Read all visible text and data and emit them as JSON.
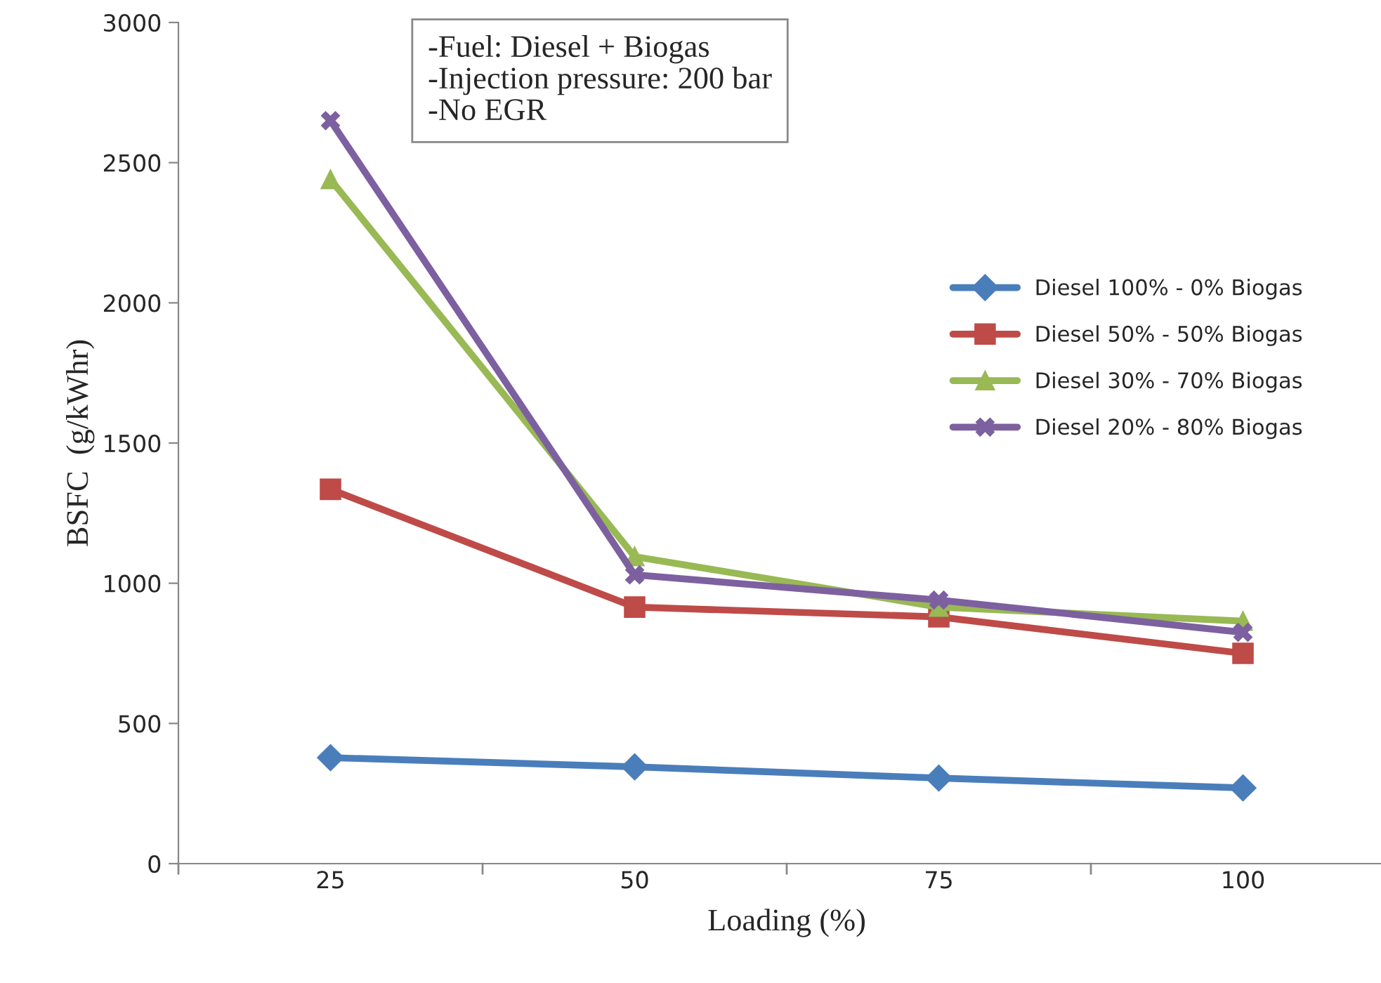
{
  "chart_data": {
    "type": "line",
    "xlabel": "Loading (%)",
    "ylabel": "BSFC  (g/kWhr)",
    "categories": [
      "25",
      "50",
      "75",
      "100"
    ],
    "ylim": [
      0,
      3000
    ],
    "yticks": [
      0,
      500,
      1000,
      1500,
      2000,
      2500,
      3000
    ],
    "grid": false,
    "legend": "right",
    "line_style": "solid",
    "annotations": [
      "-Fuel: Diesel + Biogas\n-Injection pressure: 200 bar\n-No EGR"
    ],
    "series": [
      {
        "name": "Diesel 100% - 0% Biogas",
        "color": "#4a7ebb",
        "marker": "diamond",
        "values": [
          378,
          345,
          305,
          270
        ]
      },
      {
        "name": "Diesel 50% - 50% Biogas",
        "color": "#be4b48",
        "marker": "square",
        "values": [
          1335,
          915,
          880,
          750
        ]
      },
      {
        "name": "Diesel 30% - 70% Biogas",
        "color": "#98b954",
        "marker": "triangle",
        "values": [
          2440,
          1095,
          915,
          865
        ]
      },
      {
        "name": "Diesel 20% - 80% Biogas",
        "color": "#7d60a0",
        "marker": "cross",
        "values": [
          2650,
          1030,
          940,
          825
        ]
      }
    ]
  }
}
